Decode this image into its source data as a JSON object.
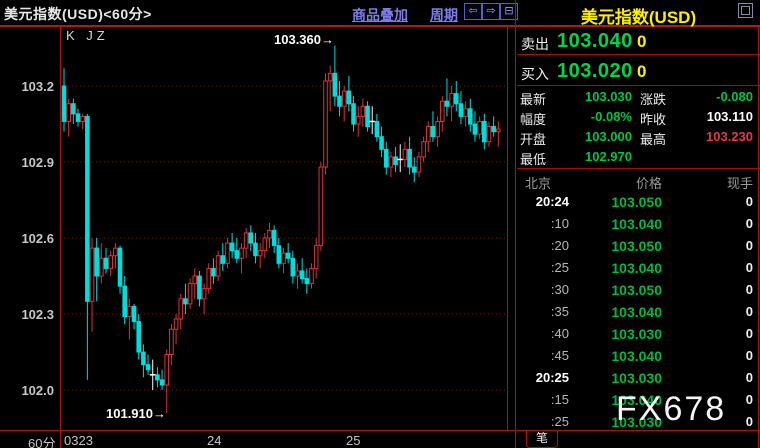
{
  "header": {
    "title": "美元指数(USD)<60分>",
    "overlay_label": "商品叠加",
    "period_label": "周期",
    "nav_icons": {
      "prev": "⇦",
      "next": "⇨",
      "split": "⊟"
    }
  },
  "chart": {
    "indicator_label": "K JZ",
    "y_labels": [
      "103.2",
      "102.9",
      "102.6",
      "102.3",
      "102.0"
    ],
    "x_ticks": {
      "day1": "0323",
      "day2": "24",
      "day3": "25"
    },
    "period": "60分",
    "annotations": {
      "high": "103.360",
      "low": "101.910",
      "arrow": "→"
    }
  },
  "chart_data": {
    "type": "candlestick",
    "title": "美元指数(USD) 60分",
    "interval": "60min",
    "ylim": [
      101.85,
      103.42
    ],
    "y_gridlines": [
      103.2,
      102.9,
      102.6,
      102.3,
      102.0
    ],
    "grid": "dotted-red-horizontal",
    "high_annotation": {
      "label": "103.360",
      "value": 103.36,
      "candle_index": 58
    },
    "low_annotation": {
      "label": "101.910",
      "value": 101.91,
      "candle_index": 22
    },
    "x_tick_indices": [
      {
        "label": "0323",
        "index": 0
      },
      {
        "label": "24",
        "index": 34
      },
      {
        "label": "25",
        "index": 63
      }
    ],
    "candles": [
      [
        103.2,
        103.27,
        103.02,
        103.06
      ],
      [
        103.06,
        103.15,
        103.0,
        103.13
      ],
      [
        103.13,
        103.15,
        103.05,
        103.09
      ],
      [
        103.09,
        103.11,
        103.04,
        103.06
      ],
      [
        103.06,
        103.09,
        103.03,
        103.08
      ],
      [
        103.08,
        103.09,
        102.04,
        102.35
      ],
      [
        102.35,
        102.6,
        102.23,
        102.56
      ],
      [
        102.56,
        102.6,
        102.35,
        102.45
      ],
      [
        102.45,
        102.58,
        102.42,
        102.52
      ],
      [
        102.52,
        102.56,
        102.46,
        102.48
      ],
      [
        102.48,
        102.55,
        102.45,
        102.53
      ],
      [
        102.53,
        102.58,
        102.48,
        102.56
      ],
      [
        102.56,
        102.57,
        102.38,
        102.41
      ],
      [
        102.41,
        102.45,
        102.26,
        102.29
      ],
      [
        102.29,
        102.36,
        102.2,
        102.33
      ],
      [
        102.33,
        102.34,
        102.24,
        102.27
      ],
      [
        102.27,
        102.3,
        102.12,
        102.15
      ],
      [
        102.15,
        102.18,
        102.05,
        102.1
      ],
      [
        102.1,
        102.14,
        102.06,
        102.08
      ],
      [
        102.06,
        102.12,
        102.0,
        102.06
      ],
      [
        102.06,
        102.09,
        102.01,
        102.04
      ],
      [
        102.04,
        102.08,
        102.0,
        102.02
      ],
      [
        102.02,
        102.16,
        101.91,
        102.14
      ],
      [
        102.14,
        102.26,
        102.1,
        102.24
      ],
      [
        102.24,
        102.3,
        102.18,
        102.28
      ],
      [
        102.28,
        102.38,
        102.24,
        102.36
      ],
      [
        102.36,
        102.42,
        102.3,
        102.34
      ],
      [
        102.34,
        102.44,
        102.32,
        102.42
      ],
      [
        102.42,
        102.48,
        102.36,
        102.45
      ],
      [
        102.45,
        102.47,
        102.33,
        102.36
      ],
      [
        102.36,
        102.42,
        102.3,
        102.4
      ],
      [
        102.4,
        102.5,
        102.38,
        102.48
      ],
      [
        102.48,
        102.52,
        102.42,
        102.45
      ],
      [
        102.45,
        102.55,
        102.43,
        102.53
      ],
      [
        102.53,
        102.58,
        102.47,
        102.5
      ],
      [
        102.5,
        102.6,
        102.48,
        102.58
      ],
      [
        102.58,
        102.62,
        102.52,
        102.55
      ],
      [
        102.55,
        102.6,
        102.5,
        102.52
      ],
      [
        102.52,
        102.58,
        102.46,
        102.56
      ],
      [
        102.56,
        102.64,
        102.52,
        102.62
      ],
      [
        102.62,
        102.65,
        102.55,
        102.58
      ],
      [
        102.58,
        102.62,
        102.5,
        102.53
      ],
      [
        102.53,
        102.58,
        102.48,
        102.55
      ],
      [
        102.55,
        102.62,
        102.52,
        102.6
      ],
      [
        102.6,
        102.66,
        102.56,
        102.63
      ],
      [
        102.63,
        102.65,
        102.54,
        102.57
      ],
      [
        102.57,
        102.6,
        102.48,
        102.5
      ],
      [
        102.5,
        102.56,
        102.46,
        102.54
      ],
      [
        102.54,
        102.58,
        102.5,
        102.52
      ],
      [
        102.52,
        102.55,
        102.42,
        102.45
      ],
      [
        102.45,
        102.5,
        102.4,
        102.47
      ],
      [
        102.47,
        102.52,
        102.42,
        102.44
      ],
      [
        102.44,
        102.48,
        102.38,
        102.42
      ],
      [
        102.42,
        102.5,
        102.4,
        102.48
      ],
      [
        102.48,
        102.6,
        102.44,
        102.57
      ],
      [
        102.57,
        102.9,
        102.55,
        102.88
      ],
      [
        102.88,
        103.25,
        102.85,
        103.22
      ],
      [
        103.22,
        103.28,
        103.1,
        103.25
      ],
      [
        103.25,
        103.36,
        103.12,
        103.16
      ],
      [
        103.16,
        103.22,
        103.08,
        103.12
      ],
      [
        103.12,
        103.2,
        103.06,
        103.18
      ],
      [
        103.18,
        103.24,
        103.1,
        103.13
      ],
      [
        103.13,
        103.16,
        103.02,
        103.05
      ],
      [
        103.05,
        103.12,
        103.0,
        103.08
      ],
      [
        103.08,
        103.15,
        103.04,
        103.12
      ],
      [
        103.12,
        103.14,
        103.02,
        103.04
      ],
      [
        103.06,
        103.12,
        103.01,
        103.06
      ],
      [
        103.06,
        103.09,
        102.98,
        103.0
      ],
      [
        103.0,
        103.04,
        102.92,
        102.95
      ],
      [
        102.95,
        102.98,
        102.85,
        102.88
      ],
      [
        102.88,
        102.94,
        102.84,
        102.92
      ],
      [
        102.92,
        102.96,
        102.86,
        102.89
      ],
      [
        102.91,
        102.97,
        102.86,
        102.91
      ],
      [
        102.91,
        102.98,
        102.88,
        102.95
      ],
      [
        102.95,
        103.0,
        102.85,
        102.88
      ],
      [
        102.88,
        102.92,
        102.82,
        102.86
      ],
      [
        102.86,
        102.94,
        102.84,
        102.92
      ],
      [
        102.92,
        103.0,
        102.9,
        102.98
      ],
      [
        102.98,
        103.06,
        102.94,
        103.04
      ],
      [
        103.04,
        103.1,
        102.98,
        103.0
      ],
      [
        103.0,
        103.08,
        102.96,
        103.06
      ],
      [
        103.06,
        103.16,
        103.02,
        103.14
      ],
      [
        103.14,
        103.23,
        103.08,
        103.12
      ],
      [
        103.12,
        103.2,
        103.06,
        103.17
      ],
      [
        103.17,
        103.22,
        103.1,
        103.13
      ],
      [
        103.13,
        103.18,
        103.05,
        103.08
      ],
      [
        103.08,
        103.14,
        103.04,
        103.11
      ],
      [
        103.11,
        103.15,
        103.02,
        103.05
      ],
      [
        103.05,
        103.1,
        102.98,
        103.01
      ],
      [
        103.01,
        103.08,
        102.99,
        103.06
      ],
      [
        103.06,
        103.09,
        102.95,
        102.98
      ],
      [
        102.98,
        103.06,
        102.96,
        103.04
      ],
      [
        103.04,
        103.08,
        103.0,
        103.02
      ],
      [
        103.02,
        103.06,
        102.96,
        103.03
      ]
    ]
  },
  "quote": {
    "title": "美元指数(USD)",
    "sell": {
      "label": "卖出",
      "price": "103.040",
      "vol": "0"
    },
    "buy": {
      "label": "买入",
      "price": "103.020",
      "vol": "0"
    },
    "stats": {
      "latest": {
        "label": "最新",
        "value": "103.030"
      },
      "change": {
        "label": "涨跌",
        "value": "-0.080"
      },
      "pct": {
        "label": "幅度",
        "value": "-0.08%"
      },
      "prev_close": {
        "label": "昨收",
        "value": "103.110"
      },
      "open": {
        "label": "开盘",
        "value": "103.000"
      },
      "high": {
        "label": "最高",
        "value": "103.230"
      },
      "low": {
        "label": "最低",
        "value": "102.970"
      }
    },
    "table": {
      "headers": [
        "北京",
        "价格",
        "现手"
      ],
      "rows": [
        [
          "20:24",
          "103.050",
          "0"
        ],
        [
          ":10",
          "103.040",
          "0"
        ],
        [
          ":20",
          "103.050",
          "0"
        ],
        [
          ":25",
          "103.040",
          "0"
        ],
        [
          ":30",
          "103.050",
          "0"
        ],
        [
          ":35",
          "103.040",
          "0"
        ],
        [
          ":40",
          "103.030",
          "0"
        ],
        [
          ":45",
          "103.040",
          "0"
        ],
        [
          "20:25",
          "103.030",
          "0"
        ],
        [
          ":15",
          "103.040",
          "0"
        ],
        [
          ":25",
          "103.030",
          "0"
        ]
      ]
    },
    "tab": "笔"
  },
  "watermark": "FX678",
  "colors": {
    "candle_up": "#d83434",
    "candle_down": "#00dcdc",
    "candle_doji": "#ffffff",
    "grid": "#7c1212",
    "panel_border": "#a81414",
    "price_green": "#00c444",
    "price_red": "#e03c3c",
    "highlight_yellow": "#ffee00",
    "link_blue": "#7d7de8"
  }
}
